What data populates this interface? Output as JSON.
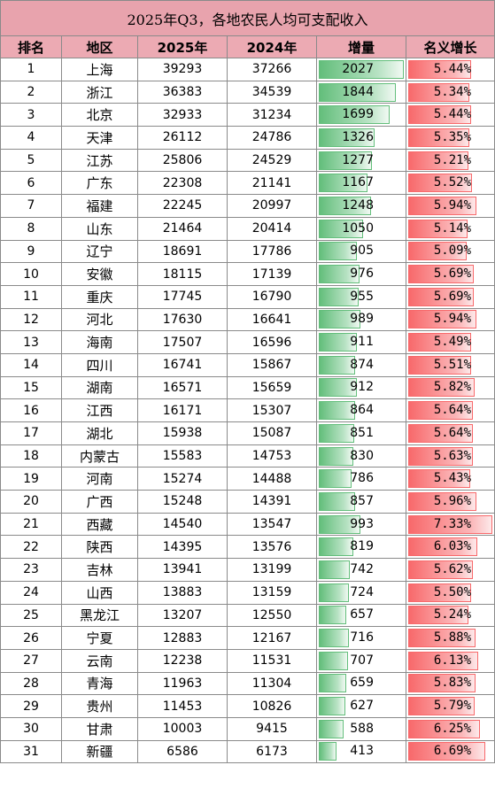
{
  "title": "2025年Q3，各地农民人均可支配收入",
  "headers": [
    "排名",
    "地区",
    "2025年",
    "2024年",
    "增量",
    "名义增长"
  ],
  "colors": {
    "title_bg": "#e8a3ad",
    "header_bg": "#ecaab3",
    "bar_green": "#63be7b",
    "bar_red": "#f8696b"
  },
  "rows": [
    {
      "rank": "1",
      "region": "上海",
      "y2025": "39293",
      "y2024": "37266",
      "increase": "2027",
      "growth": "5.44%"
    },
    {
      "rank": "2",
      "region": "浙江",
      "y2025": "36383",
      "y2024": "34539",
      "increase": "1844",
      "growth": "5.34%"
    },
    {
      "rank": "3",
      "region": "北京",
      "y2025": "32933",
      "y2024": "31234",
      "increase": "1699",
      "growth": "5.44%"
    },
    {
      "rank": "4",
      "region": "天津",
      "y2025": "26112",
      "y2024": "24786",
      "increase": "1326",
      "growth": "5.35%"
    },
    {
      "rank": "5",
      "region": "江苏",
      "y2025": "25806",
      "y2024": "24529",
      "increase": "1277",
      "growth": "5.21%"
    },
    {
      "rank": "6",
      "region": "广东",
      "y2025": "22308",
      "y2024": "21141",
      "increase": "1167",
      "growth": "5.52%"
    },
    {
      "rank": "7",
      "region": "福建",
      "y2025": "22245",
      "y2024": "20997",
      "increase": "1248",
      "growth": "5.94%"
    },
    {
      "rank": "8",
      "region": "山东",
      "y2025": "21464",
      "y2024": "20414",
      "increase": "1050",
      "growth": "5.14%"
    },
    {
      "rank": "9",
      "region": "辽宁",
      "y2025": "18691",
      "y2024": "17786",
      "increase": "905",
      "growth": "5.09%"
    },
    {
      "rank": "10",
      "region": "安徽",
      "y2025": "18115",
      "y2024": "17139",
      "increase": "976",
      "growth": "5.69%"
    },
    {
      "rank": "11",
      "region": "重庆",
      "y2025": "17745",
      "y2024": "16790",
      "increase": "955",
      "growth": "5.69%"
    },
    {
      "rank": "12",
      "region": "河北",
      "y2025": "17630",
      "y2024": "16641",
      "increase": "989",
      "growth": "5.94%"
    },
    {
      "rank": "13",
      "region": "海南",
      "y2025": "17507",
      "y2024": "16596",
      "increase": "911",
      "growth": "5.49%"
    },
    {
      "rank": "14",
      "region": "四川",
      "y2025": "16741",
      "y2024": "15867",
      "increase": "874",
      "growth": "5.51%"
    },
    {
      "rank": "15",
      "region": "湖南",
      "y2025": "16571",
      "y2024": "15659",
      "increase": "912",
      "growth": "5.82%"
    },
    {
      "rank": "16",
      "region": "江西",
      "y2025": "16171",
      "y2024": "15307",
      "increase": "864",
      "growth": "5.64%"
    },
    {
      "rank": "17",
      "region": "湖北",
      "y2025": "15938",
      "y2024": "15087",
      "increase": "851",
      "growth": "5.64%"
    },
    {
      "rank": "18",
      "region": "内蒙古",
      "y2025": "15583",
      "y2024": "14753",
      "increase": "830",
      "growth": "5.63%"
    },
    {
      "rank": "19",
      "region": "河南",
      "y2025": "15274",
      "y2024": "14488",
      "increase": "786",
      "growth": "5.43%"
    },
    {
      "rank": "20",
      "region": "广西",
      "y2025": "15248",
      "y2024": "14391",
      "increase": "857",
      "growth": "5.96%"
    },
    {
      "rank": "21",
      "region": "西藏",
      "y2025": "14540",
      "y2024": "13547",
      "increase": "993",
      "growth": "7.33%"
    },
    {
      "rank": "22",
      "region": "陕西",
      "y2025": "14395",
      "y2024": "13576",
      "increase": "819",
      "growth": "6.03%"
    },
    {
      "rank": "23",
      "region": "吉林",
      "y2025": "13941",
      "y2024": "13199",
      "increase": "742",
      "growth": "5.62%"
    },
    {
      "rank": "24",
      "region": "山西",
      "y2025": "13883",
      "y2024": "13159",
      "increase": "724",
      "growth": "5.50%"
    },
    {
      "rank": "25",
      "region": "黑龙江",
      "y2025": "13207",
      "y2024": "12550",
      "increase": "657",
      "growth": "5.24%"
    },
    {
      "rank": "26",
      "region": "宁夏",
      "y2025": "12883",
      "y2024": "12167",
      "increase": "716",
      "growth": "5.88%"
    },
    {
      "rank": "27",
      "region": "云南",
      "y2025": "12238",
      "y2024": "11531",
      "increase": "707",
      "growth": "6.13%"
    },
    {
      "rank": "28",
      "region": "青海",
      "y2025": "11963",
      "y2024": "11304",
      "increase": "659",
      "growth": "5.83%"
    },
    {
      "rank": "29",
      "region": "贵州",
      "y2025": "11453",
      "y2024": "10826",
      "increase": "627",
      "growth": "5.79%"
    },
    {
      "rank": "30",
      "region": "甘肃",
      "y2025": "10003",
      "y2024": "9415",
      "increase": "588",
      "growth": "6.25%"
    },
    {
      "rank": "31",
      "region": "新疆",
      "y2025": "6586",
      "y2024": "6173",
      "increase": "413",
      "growth": "6.69%"
    }
  ]
}
